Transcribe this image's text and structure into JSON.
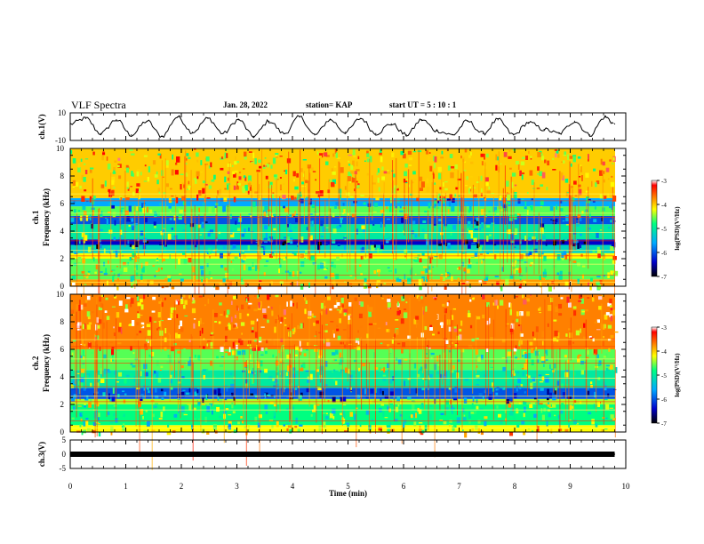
{
  "header": {
    "title": "VLF Spectra",
    "date": "Jan. 28, 2022",
    "station": "station= KAP",
    "start": "start  UT =   5 : 10 : 1"
  },
  "colors": {
    "trace": "#000000",
    "colorbar": [
      "#000000",
      "#0000cc",
      "#00aaff",
      "#00ff80",
      "#ffff00",
      "#ff6600",
      "#ff0000",
      "#ffffff"
    ]
  },
  "chart_data": [
    {
      "type": "line",
      "panel": "ch1-waveform",
      "ylabel": "ch.1(V)",
      "xlim": [
        0,
        10
      ],
      "ylim": [
        -10,
        10
      ],
      "yticks": [
        "10",
        "-10"
      ],
      "description_of_series": "oscillating voltage trace, roughly periodic with ~0.55 min period, amplitude about 7 V",
      "x": [
        0,
        0.28,
        0.55,
        0.83,
        1.1,
        1.38,
        1.65,
        1.93,
        2.2,
        2.48,
        2.75,
        3.03,
        3.3,
        3.58,
        3.85,
        4.13,
        4.4,
        4.68,
        4.95,
        5.23,
        5.5,
        5.78,
        6.05,
        6.33,
        6.6,
        6.88,
        7.15,
        7.43,
        7.7,
        7.98,
        8.25,
        8.53,
        8.8,
        9.08,
        9.35,
        9.63,
        9.8
      ],
      "y": [
        2,
        6,
        -5,
        5,
        -6,
        4,
        -7,
        7,
        -4,
        6,
        -5,
        5,
        -7,
        4,
        -5,
        7,
        -6,
        5,
        -4,
        6,
        -5,
        2,
        -6,
        5,
        -3,
        -6,
        4,
        -5,
        5,
        -6,
        3,
        -2,
        -5,
        4,
        -6,
        7,
        2
      ]
    },
    {
      "type": "heatmap",
      "panel": "ch1-spectrogram",
      "ylabel_top": "ch.1",
      "ylabel": "Frequency (kHz)",
      "xlim": [
        0,
        10
      ],
      "ylim": [
        0,
        10
      ],
      "yticks": [
        "0",
        "2",
        "4",
        "6",
        "8",
        "10"
      ],
      "colorbar": {
        "label": "log(PSD)(V²/Hz)",
        "range": [
          -7,
          -3
        ],
        "ticks": [
          "-3",
          "-4",
          "-5",
          "-6",
          "-7"
        ]
      },
      "bands": [
        {
          "from": 0,
          "to": 0.5,
          "level": -3.8
        },
        {
          "from": 0.5,
          "to": 2.0,
          "level": -4.6
        },
        {
          "from": 2.0,
          "to": 2.4,
          "level": -4.2
        },
        {
          "from": 2.4,
          "to": 3.0,
          "level": -5.2
        },
        {
          "from": 3.0,
          "to": 3.4,
          "level": -6.4
        },
        {
          "from": 3.4,
          "to": 4.5,
          "level": -5.0
        },
        {
          "from": 4.5,
          "to": 5.1,
          "level": -6.0
        },
        {
          "from": 5.1,
          "to": 5.8,
          "level": -4.6
        },
        {
          "from": 5.8,
          "to": 6.4,
          "level": -5.6
        },
        {
          "from": 6.4,
          "to": 10,
          "level": -4.0
        }
      ]
    },
    {
      "type": "heatmap",
      "panel": "ch2-spectrogram",
      "ylabel_top": "ch.2",
      "ylabel": "Frequency (kHz)",
      "xlim": [
        0,
        10
      ],
      "ylim": [
        0,
        10
      ],
      "yticks": [
        "0",
        "2",
        "4",
        "6",
        "8",
        "10"
      ],
      "colorbar": {
        "label": "log(PSD)(V²/Hz)",
        "range": [
          -7,
          -3
        ],
        "ticks": [
          "-3",
          "-4",
          "-5",
          "-6",
          "-7"
        ]
      },
      "bands": [
        {
          "from": 0,
          "to": 0.5,
          "level": -4.2
        },
        {
          "from": 0.5,
          "to": 2.0,
          "level": -4.8
        },
        {
          "from": 2.0,
          "to": 2.4,
          "level": -4.4
        },
        {
          "from": 2.4,
          "to": 3.2,
          "level": -6.0
        },
        {
          "from": 3.2,
          "to": 4.5,
          "level": -5.0
        },
        {
          "from": 4.5,
          "to": 6.0,
          "level": -4.6
        },
        {
          "from": 6.0,
          "to": 10,
          "level": -3.7
        }
      ]
    },
    {
      "type": "line",
      "panel": "ch3-waveform",
      "ylabel": "ch.3(V)",
      "xlim": [
        0,
        10
      ],
      "ylim": [
        -5,
        5
      ],
      "yticks": [
        "5",
        "0",
        "-5"
      ],
      "x": [
        0,
        9.8
      ],
      "y": [
        0,
        0
      ],
      "xlabel": "Time (min)",
      "xticks": [
        "0",
        "1",
        "2",
        "3",
        "4",
        "5",
        "6",
        "7",
        "8",
        "9",
        "10"
      ]
    }
  ]
}
